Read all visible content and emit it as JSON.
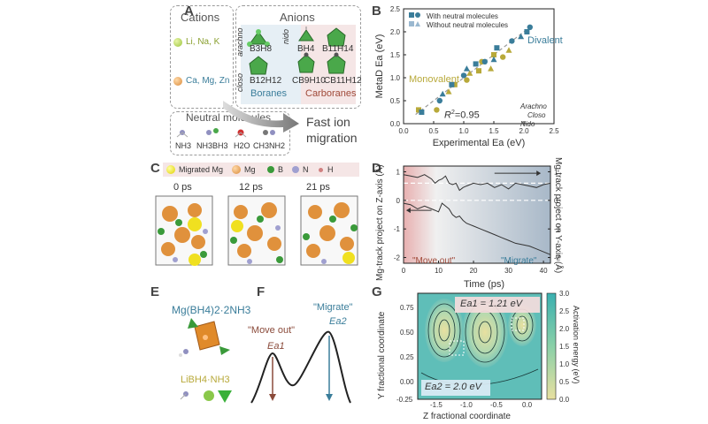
{
  "panels": {
    "a": {
      "label": "A",
      "cations_title": "Cations",
      "cation1": "Li, Na, K",
      "cation2": "Ca, Mg, Zn",
      "anions_title": "Anions",
      "arachno": "arachno",
      "nido": "nido",
      "closo": "closo",
      "b3h8": "B3H8",
      "bh4": "BH4",
      "b11h14": "B11H14",
      "b12h12": "B12H12",
      "cb9h10": "CB9H10",
      "cb11h12": "CB11H12",
      "boranes": "Boranes",
      "carboranes": "Carboranes",
      "neutral_title": "Neutral molecules",
      "nh3": "NH3",
      "nh3bh3": "NH3BH3",
      "h2o": "H2O",
      "ch3nh2": "CH3NH2",
      "fast1": "Fast ion",
      "fast2": "migration",
      "colors": {
        "cation1": "#9ac43c",
        "cation2": "#d98a3a",
        "green": "#3a9a3a",
        "blue": "#3a8ab0",
        "brown": "#8a4a3a"
      }
    },
    "b": {
      "label": "B",
      "legend1": "With neutral molecules",
      "legend2": "Without neutral molecules",
      "divalent": "Divalent",
      "monovalent": "Monovalent",
      "r2": "R",
      "r2val": "=0.95",
      "leg_arachno": "Arachno",
      "leg_closo": "Closo",
      "leg_nido": "Nido"
    },
    "c": {
      "label": "C",
      "leg_migrated": "Migrated Mg",
      "leg_mg": "Mg",
      "leg_b": "B",
      "leg_n": "N",
      "leg_h": "H",
      "t0": "0 ps",
      "t12": "12 ps",
      "t21": "21 ps"
    },
    "d": {
      "label": "D",
      "ylabel_left": "Mg-track project on Z-axis (Å)",
      "ylabel_right": "Mg-track project on Y-axis (Å)",
      "xlabel": "Time (ps)",
      "moveout": "\"Move out\"",
      "migrate": "\"Migrate\""
    },
    "e": {
      "label": "E",
      "formula1": "Mg(BH4)2·2NH3",
      "formula2": "LiBH4·NH3"
    },
    "f": {
      "label": "F",
      "moveout": "\"Move out\"",
      "migrate": "\"Migrate\"",
      "ea1": "Ea1",
      "ea2": "Ea2"
    },
    "g": {
      "label": "G",
      "ylabel": "Y fractional coordinate",
      "xlabel": "Z fractional coordinate",
      "cbar_label": "Activation energy (eV)",
      "ea1": "Ea1 = 1.21 eV",
      "ea2": "Ea2 = 2.0 eV",
      "xticks": [
        "-1.5",
        "-1.0",
        "-0.5",
        "0.0"
      ],
      "yticks": [
        "0.75",
        "0.50",
        "0.25",
        "0.00",
        "-0.25"
      ],
      "cbticks": [
        "3.0",
        "2.5",
        "2.0",
        "1.5",
        "1.0",
        "0.5",
        "0.0"
      ]
    }
  },
  "chart_data": [
    {
      "type": "scatter",
      "title": "",
      "xlabel": "Experimental Ea (eV)",
      "ylabel": "MetaD Ea (eV)",
      "xlim": [
        0,
        2.5
      ],
      "ylim": [
        0,
        2.5
      ],
      "xticks": [
        "0.0",
        "0.5",
        "1.0",
        "1.5",
        "2.0",
        "2.5"
      ],
      "yticks": [
        "0.0",
        "0.5",
        "1.0",
        "1.5",
        "2.0",
        "2.5"
      ],
      "series": [
        {
          "name": "Monovalent",
          "color": "#b8a93a",
          "x": [
            0.25,
            0.55,
            0.75,
            0.85,
            1.05,
            1.1,
            1.25,
            1.3,
            1.45,
            1.5,
            1.65,
            1.75
          ],
          "y": [
            0.3,
            0.3,
            0.7,
            0.85,
            0.95,
            1.1,
            1.15,
            1.35,
            1.2,
            1.5,
            1.45,
            1.6
          ]
        },
        {
          "name": "Divalent",
          "color": "#3a7d9a",
          "x": [
            0.3,
            0.6,
            0.65,
            0.8,
            1.0,
            1.05,
            1.2,
            1.35,
            1.5,
            1.55,
            1.8,
            1.95,
            2.05,
            2.1
          ],
          "y": [
            0.25,
            0.5,
            0.65,
            0.85,
            1.05,
            1.2,
            1.3,
            1.35,
            1.4,
            1.65,
            1.8,
            1.9,
            2.0,
            2.1
          ]
        }
      ],
      "fit_line": {
        "x": [
          0.2,
          2.1
        ],
        "y": [
          0.2,
          2.1
        ]
      }
    },
    {
      "type": "line",
      "title": "",
      "xlabel": "Time (ps)",
      "ylabel": "Mg-track project on Z-axis (Å)",
      "xlim": [
        0,
        42
      ],
      "ylim": [
        -2.2,
        1.2
      ],
      "xticks": [
        "0",
        "10",
        "20",
        "30",
        "40"
      ],
      "yticks_left": [
        "1",
        "0",
        "-1",
        "-2"
      ],
      "yticks_right": [
        "1",
        "0",
        "-1",
        "-2"
      ],
      "series": [
        {
          "name": "",
          "x": [
            0,
            2,
            4,
            6,
            8,
            9,
            10,
            11,
            12,
            13,
            14,
            15,
            16,
            17,
            18,
            20,
            22,
            24,
            26,
            28,
            30,
            32,
            34,
            36,
            38,
            40,
            42
          ],
          "y": [
            0.9,
            0.85,
            0.8,
            0.9,
            0.75,
            0.6,
            0.7,
            0.75,
            0.85,
            0.6,
            0.55,
            0.6,
            0.35,
            0.45,
            0.5,
            0.6,
            0.55,
            0.6,
            0.45,
            0.55,
            0.4,
            0.6,
            0.55,
            0.5,
            0.45,
            0.55,
            0.6
          ]
        },
        {
          "name": "",
          "x": [
            0,
            2,
            4,
            6,
            8,
            9,
            10,
            11,
            12,
            13,
            14,
            15,
            16,
            17,
            18,
            20,
            22,
            24,
            26,
            28,
            30,
            32,
            34,
            36,
            38,
            40,
            42
          ],
          "y": [
            -0.1,
            -0.15,
            -0.3,
            -0.2,
            -0.3,
            -0.35,
            -0.4,
            -0.1,
            -0.2,
            -0.3,
            -0.5,
            -0.6,
            -0.55,
            -0.7,
            -0.8,
            -0.9,
            -1.0,
            -1.1,
            -1.2,
            -1.3,
            -1.4,
            -1.5,
            -1.55,
            -1.6,
            -1.7,
            -1.8,
            -1.9
          ]
        }
      ]
    }
  ]
}
